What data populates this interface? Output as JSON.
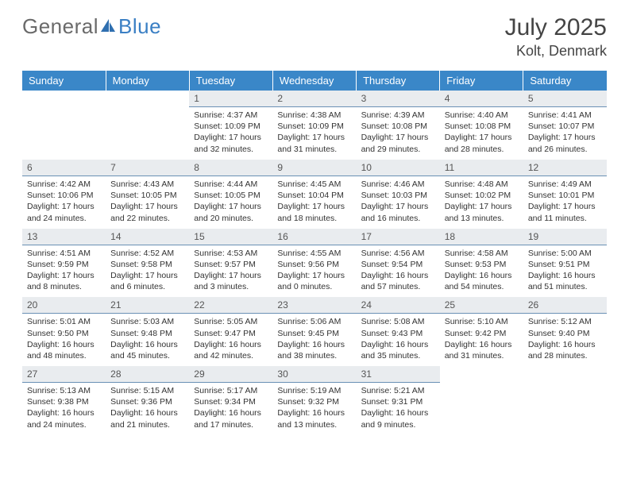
{
  "logo": {
    "text_general": "General",
    "text_blue": "Blue"
  },
  "header": {
    "month_title": "July 2025",
    "location": "Kolt, Denmark"
  },
  "colors": {
    "header_bg": "#3a87c8",
    "header_text": "#ffffff",
    "daynum_bg": "#e9ecef",
    "daynum_border": "#6a90b5",
    "body_text": "#333333",
    "logo_gray": "#6a6a6a",
    "logo_blue": "#3a7fc4"
  },
  "day_headers": [
    "Sunday",
    "Monday",
    "Tuesday",
    "Wednesday",
    "Thursday",
    "Friday",
    "Saturday"
  ],
  "weeks": [
    [
      null,
      null,
      {
        "n": "1",
        "sr": "Sunrise: 4:37 AM",
        "ss": "Sunset: 10:09 PM",
        "dl": "Daylight: 17 hours and 32 minutes."
      },
      {
        "n": "2",
        "sr": "Sunrise: 4:38 AM",
        "ss": "Sunset: 10:09 PM",
        "dl": "Daylight: 17 hours and 31 minutes."
      },
      {
        "n": "3",
        "sr": "Sunrise: 4:39 AM",
        "ss": "Sunset: 10:08 PM",
        "dl": "Daylight: 17 hours and 29 minutes."
      },
      {
        "n": "4",
        "sr": "Sunrise: 4:40 AM",
        "ss": "Sunset: 10:08 PM",
        "dl": "Daylight: 17 hours and 28 minutes."
      },
      {
        "n": "5",
        "sr": "Sunrise: 4:41 AM",
        "ss": "Sunset: 10:07 PM",
        "dl": "Daylight: 17 hours and 26 minutes."
      }
    ],
    [
      {
        "n": "6",
        "sr": "Sunrise: 4:42 AM",
        "ss": "Sunset: 10:06 PM",
        "dl": "Daylight: 17 hours and 24 minutes."
      },
      {
        "n": "7",
        "sr": "Sunrise: 4:43 AM",
        "ss": "Sunset: 10:05 PM",
        "dl": "Daylight: 17 hours and 22 minutes."
      },
      {
        "n": "8",
        "sr": "Sunrise: 4:44 AM",
        "ss": "Sunset: 10:05 PM",
        "dl": "Daylight: 17 hours and 20 minutes."
      },
      {
        "n": "9",
        "sr": "Sunrise: 4:45 AM",
        "ss": "Sunset: 10:04 PM",
        "dl": "Daylight: 17 hours and 18 minutes."
      },
      {
        "n": "10",
        "sr": "Sunrise: 4:46 AM",
        "ss": "Sunset: 10:03 PM",
        "dl": "Daylight: 17 hours and 16 minutes."
      },
      {
        "n": "11",
        "sr": "Sunrise: 4:48 AM",
        "ss": "Sunset: 10:02 PM",
        "dl": "Daylight: 17 hours and 13 minutes."
      },
      {
        "n": "12",
        "sr": "Sunrise: 4:49 AM",
        "ss": "Sunset: 10:01 PM",
        "dl": "Daylight: 17 hours and 11 minutes."
      }
    ],
    [
      {
        "n": "13",
        "sr": "Sunrise: 4:51 AM",
        "ss": "Sunset: 9:59 PM",
        "dl": "Daylight: 17 hours and 8 minutes."
      },
      {
        "n": "14",
        "sr": "Sunrise: 4:52 AM",
        "ss": "Sunset: 9:58 PM",
        "dl": "Daylight: 17 hours and 6 minutes."
      },
      {
        "n": "15",
        "sr": "Sunrise: 4:53 AM",
        "ss": "Sunset: 9:57 PM",
        "dl": "Daylight: 17 hours and 3 minutes."
      },
      {
        "n": "16",
        "sr": "Sunrise: 4:55 AM",
        "ss": "Sunset: 9:56 PM",
        "dl": "Daylight: 17 hours and 0 minutes."
      },
      {
        "n": "17",
        "sr": "Sunrise: 4:56 AM",
        "ss": "Sunset: 9:54 PM",
        "dl": "Daylight: 16 hours and 57 minutes."
      },
      {
        "n": "18",
        "sr": "Sunrise: 4:58 AM",
        "ss": "Sunset: 9:53 PM",
        "dl": "Daylight: 16 hours and 54 minutes."
      },
      {
        "n": "19",
        "sr": "Sunrise: 5:00 AM",
        "ss": "Sunset: 9:51 PM",
        "dl": "Daylight: 16 hours and 51 minutes."
      }
    ],
    [
      {
        "n": "20",
        "sr": "Sunrise: 5:01 AM",
        "ss": "Sunset: 9:50 PM",
        "dl": "Daylight: 16 hours and 48 minutes."
      },
      {
        "n": "21",
        "sr": "Sunrise: 5:03 AM",
        "ss": "Sunset: 9:48 PM",
        "dl": "Daylight: 16 hours and 45 minutes."
      },
      {
        "n": "22",
        "sr": "Sunrise: 5:05 AM",
        "ss": "Sunset: 9:47 PM",
        "dl": "Daylight: 16 hours and 42 minutes."
      },
      {
        "n": "23",
        "sr": "Sunrise: 5:06 AM",
        "ss": "Sunset: 9:45 PM",
        "dl": "Daylight: 16 hours and 38 minutes."
      },
      {
        "n": "24",
        "sr": "Sunrise: 5:08 AM",
        "ss": "Sunset: 9:43 PM",
        "dl": "Daylight: 16 hours and 35 minutes."
      },
      {
        "n": "25",
        "sr": "Sunrise: 5:10 AM",
        "ss": "Sunset: 9:42 PM",
        "dl": "Daylight: 16 hours and 31 minutes."
      },
      {
        "n": "26",
        "sr": "Sunrise: 5:12 AM",
        "ss": "Sunset: 9:40 PM",
        "dl": "Daylight: 16 hours and 28 minutes."
      }
    ],
    [
      {
        "n": "27",
        "sr": "Sunrise: 5:13 AM",
        "ss": "Sunset: 9:38 PM",
        "dl": "Daylight: 16 hours and 24 minutes."
      },
      {
        "n": "28",
        "sr": "Sunrise: 5:15 AM",
        "ss": "Sunset: 9:36 PM",
        "dl": "Daylight: 16 hours and 21 minutes."
      },
      {
        "n": "29",
        "sr": "Sunrise: 5:17 AM",
        "ss": "Sunset: 9:34 PM",
        "dl": "Daylight: 16 hours and 17 minutes."
      },
      {
        "n": "30",
        "sr": "Sunrise: 5:19 AM",
        "ss": "Sunset: 9:32 PM",
        "dl": "Daylight: 16 hours and 13 minutes."
      },
      {
        "n": "31",
        "sr": "Sunrise: 5:21 AM",
        "ss": "Sunset: 9:31 PM",
        "dl": "Daylight: 16 hours and 9 minutes."
      },
      null,
      null
    ]
  ]
}
